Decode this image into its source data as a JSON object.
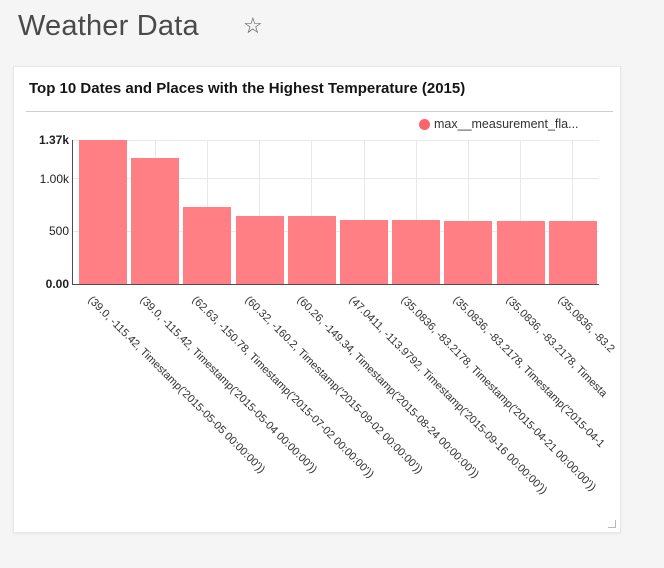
{
  "page": {
    "title": "Weather Data",
    "favorite_icon": "☆"
  },
  "card": {
    "title": "Top 10 Dates and Places with the Highest Temperature (2015)"
  },
  "colors": {
    "bar": "#ff7f84",
    "legend_dot": "#fb646b",
    "gridline": "#e8e8e8",
    "axis": "#4d4d4d",
    "page_background": "#f5f5f5",
    "card_background": "#ffffff"
  },
  "chart_data": {
    "type": "bar",
    "title": "Top 10 Dates and Places with the Highest Temperature (2015)",
    "xlabel": "",
    "ylabel": "",
    "ylim": [
      0,
      1370
    ],
    "grid": true,
    "legend_position": "top-right",
    "x_label_rotation_deg": 45,
    "legend": [
      {
        "label": "max__measurement_fla...",
        "color": "#fb646b"
      }
    ],
    "y_ticks": [
      {
        "value": 0,
        "label": "0.00",
        "bold": true
      },
      {
        "value": 500,
        "label": "500",
        "bold": false
      },
      {
        "value": 1000,
        "label": "1.00k",
        "bold": false
      },
      {
        "value": 1370,
        "label": "1.37k",
        "bold": true
      }
    ],
    "categories": [
      "(39.0, -115.42, Timestamp('2015-05-05 00:00:00'))",
      "(39.0, -115.42, Timestamp('2015-05-04 00:00:00'))",
      "(62.63, -150.78, Timestamp('2015-07-02 00:00:00'))",
      "(60.32, -160.2, Timestamp('2015-09-02 00:00:00'))",
      "(60.26, -149.34, Timestamp('2015-08-24 00:00:00'))",
      "(47.0411, -113.9792, Timestamp('2015-09-16 00:00:00'))",
      "(35.0836, -83.2178, Timestamp('2015-04-21 00:00:00'))",
      "(35.0836, -83.2178, Timestamp('2015-04-1",
      "(35.0836, -83.2178, Timesta",
      "(35.0836, -83.2"
    ],
    "series": [
      {
        "name": "max__measurement_fla...",
        "color": "#ff7f84",
        "values": [
          1370,
          1200,
          730,
          650,
          645,
          610,
          605,
          600,
          600,
          595
        ]
      }
    ]
  }
}
